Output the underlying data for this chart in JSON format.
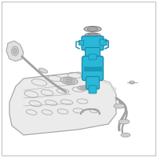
{
  "background_color": "#ffffff",
  "border_color": "#cccccc",
  "highlight_color": "#29b8d8",
  "line_color": "#a0a0a0",
  "dark_line_color": "#707070",
  "fig_width": 2.0,
  "fig_height": 2.0,
  "dpi": 100
}
